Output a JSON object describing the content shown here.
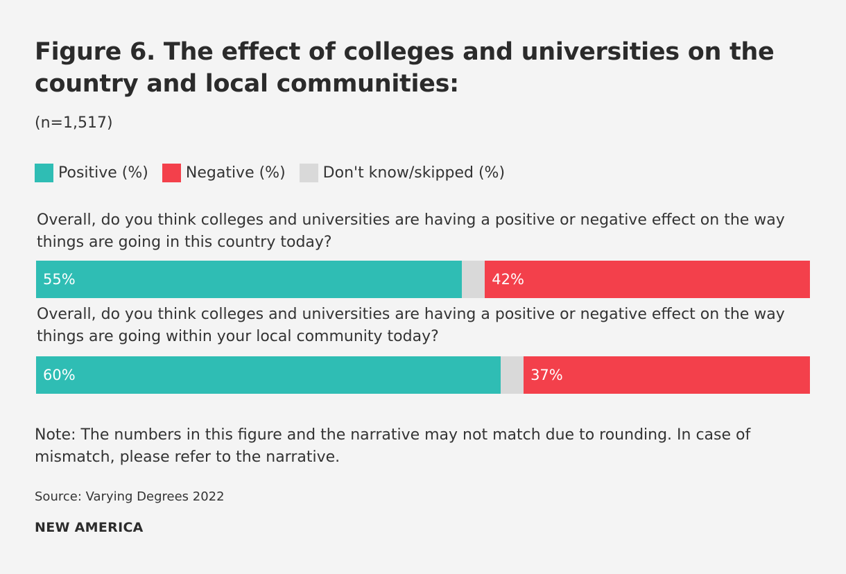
{
  "title": "Figure 6. The effect of colleges and universities on the country and local communities:",
  "subtitle": "(n=1,517)",
  "legend": [
    {
      "label": "Positive (%)",
      "color": "#2fbdb4"
    },
    {
      "label": "Negative (%)",
      "color": "#f3404b"
    },
    {
      "label": "Don't know/skipped (%)",
      "color": "#d9d9d9"
    }
  ],
  "chart_data": {
    "type": "bar",
    "orientation": "horizontal",
    "stacked": true,
    "categories": [
      "Overall, do you think colleges and universities are having a positive or negative effect on the way things are going in this country today?",
      "Overall, do you think colleges and universities are having a positive or negative effect on the way things are going within your local community today?"
    ],
    "series": [
      {
        "name": "Positive (%)",
        "values": [
          55,
          60
        ],
        "labels": [
          "55%",
          "60%"
        ],
        "color": "#2fbdb4"
      },
      {
        "name": "Don't know/skipped (%)",
        "values": [
          3,
          3
        ],
        "labels": [
          "",
          ""
        ],
        "color": "#d9d9d9"
      },
      {
        "name": "Negative (%)",
        "values": [
          42,
          37
        ],
        "labels": [
          "42%",
          "37%"
        ],
        "color": "#f3404b"
      }
    ],
    "xlim": [
      0,
      100
    ]
  },
  "note": "Note: The numbers in this figure and the narrative may not match due to rounding. In case of mismatch, please refer to the narrative.",
  "source": "Source: Varying Degrees 2022",
  "brand": "NEW AMERICA"
}
